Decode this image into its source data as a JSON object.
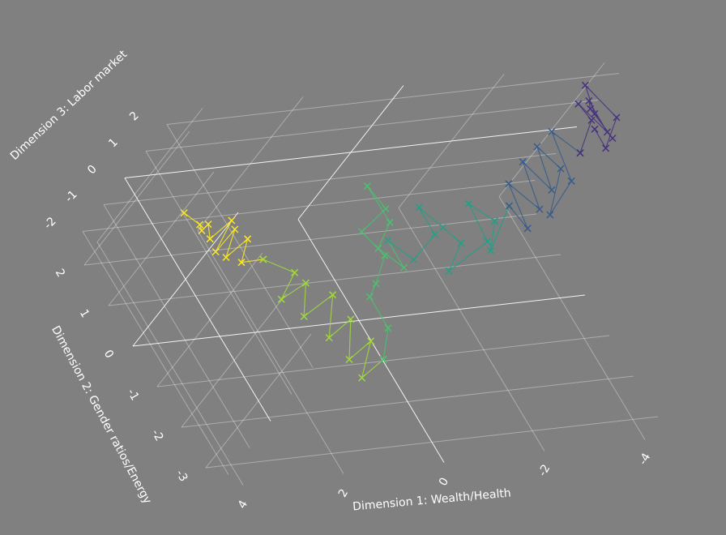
{
  "chart_data": {
    "type": "scatter3d",
    "x_title": "Dimension 1: Wealth/Health",
    "y_title": "Dimension 2: Gender ratios/Energy",
    "z_title": "Dimension 3: Labor market",
    "xlim": [
      -4.5,
      4.5
    ],
    "ylim": [
      -3.5,
      2.5
    ],
    "zlim": [
      -2.5,
      2.5
    ],
    "xticks": [
      -4,
      -2,
      0,
      2,
      4
    ],
    "yticks": [
      -3,
      -2,
      -1,
      0,
      1,
      2
    ],
    "zticks": [
      -2,
      -1,
      0,
      1,
      2
    ],
    "grid": true,
    "series": [
      {
        "color": "#fde725",
        "x": [
          4.2,
          3.9,
          4.0,
          3.6,
          3.8,
          3.4,
          3.7,
          3.3,
          3.5,
          3.1,
          3.2,
          2.9
        ],
        "y": [
          1.2,
          1.0,
          0.8,
          1.1,
          0.7,
          0.9,
          0.5,
          0.8,
          0.4,
          0.6,
          0.3,
          0.2
        ],
        "z": [
          0.6,
          0.4,
          0.5,
          0.2,
          0.3,
          0.6,
          0.1,
          0.4,
          0.0,
          0.3,
          -0.1,
          0.1
        ]
      },
      {
        "color": "#a0da39",
        "x": [
          2.9,
          2.6,
          2.8,
          2.3,
          2.5,
          2.0,
          2.2,
          1.8,
          2.0,
          1.6,
          1.9,
          1.5
        ],
        "y": [
          0.2,
          -0.3,
          -0.6,
          -0.4,
          -1.0,
          -0.8,
          -1.5,
          -1.3,
          -2.0,
          -1.8,
          -2.4,
          -2.2
        ],
        "z": [
          0.1,
          0.3,
          -0.2,
          0.0,
          -0.3,
          0.1,
          -0.4,
          -0.1,
          -0.5,
          -0.2,
          -0.6,
          -0.3
        ]
      },
      {
        "color": "#4ac16d",
        "x": [
          1.5,
          1.2,
          1.4,
          1.0,
          0.8,
          1.1,
          0.6,
          0.9,
          0.4,
          0.7,
          0.3,
          0.5
        ],
        "y": [
          -2.2,
          -1.6,
          -1.0,
          -0.6,
          -0.2,
          0.3,
          0.6,
          1.0,
          0.5,
          0.1,
          -0.3,
          0.2
        ],
        "z": [
          -0.3,
          -0.1,
          0.2,
          0.0,
          0.4,
          0.6,
          0.9,
          1.2,
          0.5,
          0.2,
          0.0,
          0.3
        ]
      },
      {
        "color": "#1fa187",
        "x": [
          0.5,
          0.1,
          -0.3,
          -0.1,
          -0.6,
          -0.9,
          -0.5,
          -1.2,
          -1.0,
          -1.5,
          -1.3,
          -1.8
        ],
        "y": [
          0.2,
          -0.2,
          0.1,
          0.6,
          0.3,
          0.0,
          -0.5,
          -0.2,
          0.5,
          0.2,
          -0.3,
          0.4
        ],
        "z": [
          0.3,
          0.1,
          0.5,
          0.8,
          0.4,
          0.2,
          0.0,
          0.5,
          0.9,
          0.6,
          0.3,
          0.8
        ]
      },
      {
        "color": "#365c8d",
        "x": [
          -1.8,
          -2.1,
          -1.9,
          -2.4,
          -2.2,
          -2.7,
          -2.5,
          -2.9,
          -2.6,
          -3.1,
          -2.8,
          -3.3
        ],
        "y": [
          0.4,
          0.0,
          0.8,
          0.3,
          1.1,
          0.6,
          1.3,
          0.9,
          0.2,
          0.7,
          1.5,
          1.1
        ],
        "z": [
          0.8,
          0.5,
          1.0,
          0.7,
          1.3,
          0.9,
          1.5,
          1.2,
          0.6,
          1.0,
          1.7,
          1.4
        ]
      },
      {
        "color": "#46327e",
        "x": [
          -3.3,
          -3.6,
          -3.4,
          -3.9,
          -3.7,
          -3.5,
          -4.0,
          -3.8,
          -3.6,
          -4.1,
          -3.9,
          -3.7
        ],
        "y": [
          1.1,
          1.6,
          1.9,
          1.4,
          2.0,
          1.7,
          1.3,
          1.8,
          2.2,
          1.6,
          1.2,
          1.5
        ],
        "z": [
          1.4,
          1.8,
          2.0,
          1.6,
          1.9,
          2.1,
          1.5,
          1.7,
          2.2,
          1.8,
          1.3,
          1.6
        ]
      }
    ]
  }
}
